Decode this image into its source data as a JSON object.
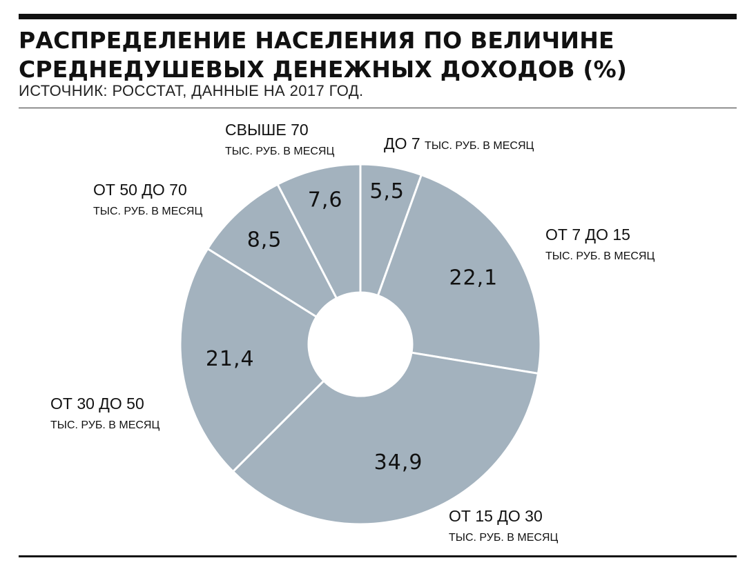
{
  "header": {
    "title_line1": "РАСПРЕДЕЛЕНИЕ НАСЕЛЕНИЯ ПО ВЕЛИЧИНЕ",
    "title_line2": "СРЕДНЕДУШЕВЫХ ДЕНЕЖНЫХ ДОХОДОВ (%)",
    "source": "ИСТОЧНИК: РОССТАТ, ДАННЫЕ НА 2017 ГОД."
  },
  "chart_data": {
    "type": "pie",
    "title": "РАСПРЕДЕЛЕНИЕ НАСЕЛЕНИЯ ПО ВЕЛИЧИНЕ СРЕДНЕДУШЕВЫХ ДЕНЕЖНЫХ ДОХОДОВ (%)",
    "donut": true,
    "slice_color": "#a3b2be",
    "separator_color": "#ffffff",
    "unit_label": "ТЫС. РУБ. В МЕСЯЦ",
    "slices": [
      {
        "label": "ДО 7",
        "value": 5.5,
        "value_text": "5,5"
      },
      {
        "label": "ОТ 7 ДО 15",
        "value": 22.1,
        "value_text": "22,1"
      },
      {
        "label": "ОТ 15 ДО 30",
        "value": 34.9,
        "value_text": "34,9"
      },
      {
        "label": "ОТ 30 ДО 50",
        "value": 21.4,
        "value_text": "21,4"
      },
      {
        "label": "ОТ 50 ДО 70",
        "value": 8.5,
        "value_text": "8,5"
      },
      {
        "label": "СВЫШЕ 70",
        "value": 7.6,
        "value_text": "7,6"
      }
    ]
  }
}
